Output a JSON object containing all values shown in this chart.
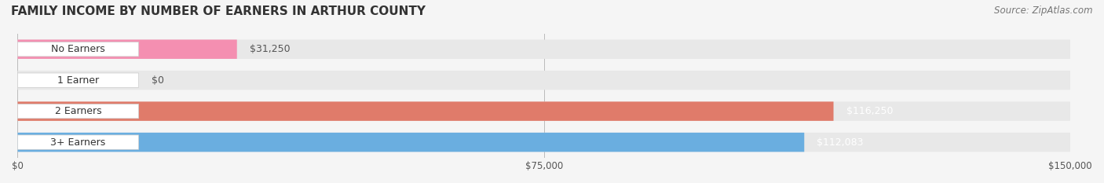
{
  "title": "FAMILY INCOME BY NUMBER OF EARNERS IN ARTHUR COUNTY",
  "source": "Source: ZipAtlas.com",
  "categories": [
    "No Earners",
    "1 Earner",
    "2 Earners",
    "3+ Earners"
  ],
  "values": [
    31250,
    0,
    116250,
    112083
  ],
  "bar_colors": [
    "#f48fb1",
    "#f5c99a",
    "#e07b6a",
    "#6aaee0"
  ],
  "label_colors": [
    "#f48fb1",
    "#f5c99a",
    "#e07b6a",
    "#6aaee0"
  ],
  "value_labels": [
    "$31,250",
    "$0",
    "$116,250",
    "$112,083"
  ],
  "xmax": 150000,
  "xticks": [
    0,
    75000,
    150000
  ],
  "xtick_labels": [
    "$0",
    "$75,000",
    "$150,000"
  ],
  "bg_color": "#f5f5f5",
  "bar_bg_color": "#e8e8e8",
  "title_fontsize": 11,
  "source_fontsize": 8.5,
  "label_fontsize": 9,
  "value_fontsize": 9
}
